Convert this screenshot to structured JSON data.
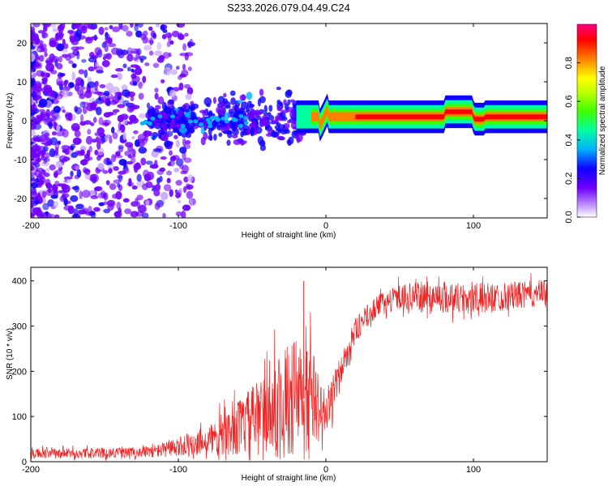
{
  "chart_data": [
    {
      "id": "spectrogram",
      "type": "heatmap",
      "title": "S233.2026.079.04.49.C24",
      "xlabel": "Height of straight line (km)",
      "ylabel": "Frequency (Hz)",
      "xlim": [
        -200,
        150
      ],
      "ylim": [
        -25,
        25
      ],
      "xticks": [
        -200,
        -100,
        0,
        100
      ],
      "yticks": [
        -20,
        -10,
        0,
        10,
        20
      ],
      "colorbar": {
        "label": "Normalized spectral amplitude",
        "range": [
          0.0,
          1.0
        ],
        "ticks": [
          0.0,
          0.2,
          0.4,
          0.6,
          0.8
        ],
        "tick_labels": [
          "0.0",
          "0.2",
          "0.4",
          "0.6",
          "0.8"
        ],
        "colormap": [
          "#ffffff",
          "#b07cff",
          "#6a00ff",
          "#0000ff",
          "#00c8ff",
          "#00ff80",
          "#80ff00",
          "#ffff00",
          "#ff8000",
          "#ff0000",
          "#ff0080"
        ]
      },
      "features": {
        "noise_region_x": [
          -200,
          -110
        ],
        "transition_region_x": [
          -120,
          -15
        ],
        "signal_region_x": [
          -20,
          150
        ],
        "signal_center_freq_hz": 1
      }
    },
    {
      "id": "snr",
      "type": "line",
      "xlabel": "Height of straight line (km)",
      "ylabel": "SNR (10 * v/v)",
      "xlim": [
        -200,
        150
      ],
      "ylim": [
        0,
        430
      ],
      "xticks": [
        -200,
        -100,
        0,
        100
      ],
      "yticks": [
        0,
        100,
        200,
        300,
        400
      ],
      "series": [
        {
          "name": "SNR",
          "color": "#ee2222",
          "x": [
            -200,
            -180,
            -160,
            -140,
            -120,
            -100,
            -90,
            -80,
            -70,
            -60,
            -50,
            -40,
            -30,
            -25,
            -20,
            -15,
            -10,
            -5,
            0,
            5,
            10,
            15,
            20,
            30,
            40,
            50,
            60,
            80,
            100,
            120,
            150
          ],
          "mean": [
            18,
            18,
            19,
            20,
            22,
            30,
            40,
            48,
            60,
            75,
            90,
            110,
            125,
            135,
            145,
            130,
            150,
            120,
            110,
            150,
            200,
            245,
            290,
            330,
            355,
            365,
            365,
            365,
            360,
            365,
            375
          ],
          "spread": [
            14,
            14,
            14,
            14,
            16,
            26,
            35,
            45,
            60,
            75,
            95,
            125,
            150,
            160,
            170,
            170,
            150,
            90,
            60,
            55,
            45,
            40,
            35,
            30,
            30,
            35,
            40,
            45,
            45,
            40,
            35
          ]
        }
      ],
      "annotations": [
        {
          "type": "spike",
          "x": -15,
          "y": 400
        }
      ]
    }
  ]
}
